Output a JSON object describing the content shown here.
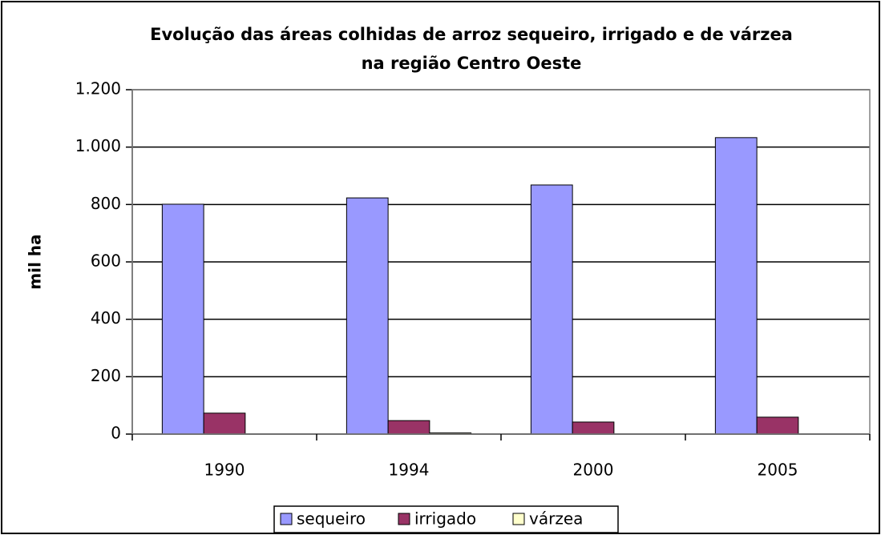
{
  "chart_data": {
    "type": "bar",
    "title": [
      "Evolução das áreas colhidas de arroz sequeiro, irrigado e de várzea",
      "na região Centro Oeste"
    ],
    "ylabel": "mil ha",
    "categories": [
      "1990",
      "1994",
      "2000",
      "2005"
    ],
    "series": [
      {
        "name": "sequeiro",
        "color": "#9999ff",
        "values": [
          801,
          823,
          868,
          1033
        ]
      },
      {
        "name": "irrigado",
        "color": "#993366",
        "values": [
          73,
          47,
          42,
          59
        ]
      },
      {
        "name": "várzea",
        "color": "#ffffcc",
        "values": [
          0,
          4,
          0,
          0
        ]
      }
    ],
    "ylim": [
      0,
      1200
    ],
    "yticks": [
      0,
      200,
      400,
      600,
      800,
      {
        "value": 1000,
        "label": "1.000"
      },
      {
        "value": 1200,
        "label": "1.200"
      }
    ],
    "grid": true,
    "legend": "bottom"
  }
}
